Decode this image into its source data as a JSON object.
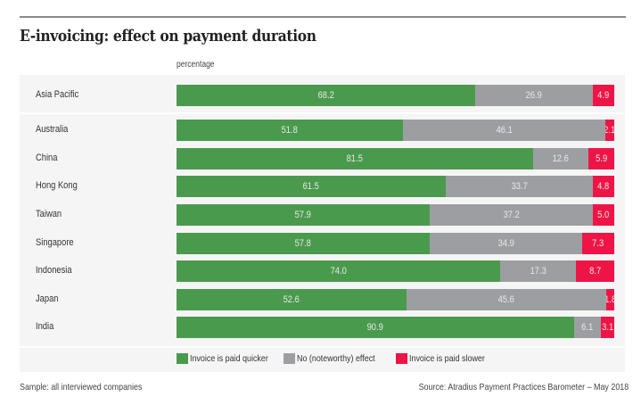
{
  "chart_data": {
    "type": "bar",
    "orientation": "horizontal",
    "stacked": true,
    "title": "E-invoicing: effect on payment duration",
    "unit_label": "percentage",
    "xlim": [
      0,
      100
    ],
    "categories": [
      "Asia Pacific",
      "Australia",
      "China",
      "Hong Kong",
      "Taiwan",
      "Singapore",
      "Indonesia",
      "Japan",
      "India"
    ],
    "series": [
      {
        "name": "Invoice is paid quicker",
        "color": "#4a9a4e",
        "values": [
          68.2,
          51.8,
          81.5,
          61.5,
          57.9,
          57.8,
          74.0,
          52.6,
          90.9
        ]
      },
      {
        "name": "No (noteworthy) effect",
        "color": "#9d9ea2",
        "values": [
          26.9,
          46.1,
          12.6,
          33.7,
          37.2,
          34.9,
          17.3,
          45.6,
          6.1
        ]
      },
      {
        "name": "Invoice is paid slower",
        "color": "#ee1546",
        "values": [
          4.9,
          2.1,
          5.9,
          4.8,
          5.0,
          7.3,
          8.7,
          1.8,
          3.1
        ]
      }
    ],
    "labels": [
      [
        "68.2",
        "26.9",
        "4.9"
      ],
      [
        "51.8",
        "46.1",
        "2.1"
      ],
      [
        "81.5",
        "12.6",
        "5.9"
      ],
      [
        "61.5",
        "33.7",
        "4.8"
      ],
      [
        "57.9",
        "37.2",
        "5.0"
      ],
      [
        "57.8",
        "34.9",
        "7.3"
      ],
      [
        "74.0",
        "17.3",
        "8.7"
      ],
      [
        "52.6",
        "45.6",
        "1.8"
      ],
      [
        "90.9",
        "6.1",
        "3.1"
      ]
    ],
    "legend_position": "bottom",
    "grid": false
  },
  "footer": {
    "sample": "Sample: all interviewed companies",
    "source": "Source: Atradius Payment Practices Barometer – May 2018"
  }
}
